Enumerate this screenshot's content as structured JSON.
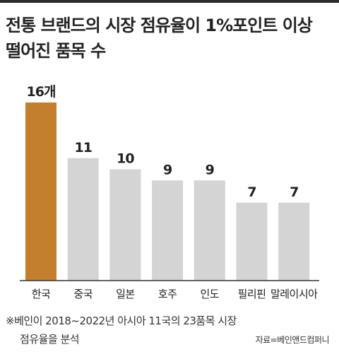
{
  "title": {
    "line1": "전통 브랜드의 시장 점유율이 1%포인트 이상",
    "line2": "떨어진 품목 수"
  },
  "footnote": {
    "line1": "※베인이 2018~2022년 아시아 11국의 23품목 시장",
    "line2": "점유율을 분석"
  },
  "source": "자료=베인앤드컴퍼니",
  "colors": {
    "highlight": "#c47f2e",
    "bar": "#d4d4d4",
    "axis": "#333333"
  },
  "chart_data": {
    "type": "bar",
    "categories": [
      "한국",
      "중국",
      "일본",
      "호주",
      "인도",
      "필리핀",
      "말레이시아"
    ],
    "values": [
      16,
      11,
      10,
      9,
      9,
      7,
      7
    ],
    "data_labels": [
      "16개",
      "11",
      "10",
      "9",
      "9",
      "7",
      "7"
    ],
    "highlight_index": 0,
    "ylim": [
      0,
      16
    ],
    "grid": false,
    "legend": "none"
  }
}
